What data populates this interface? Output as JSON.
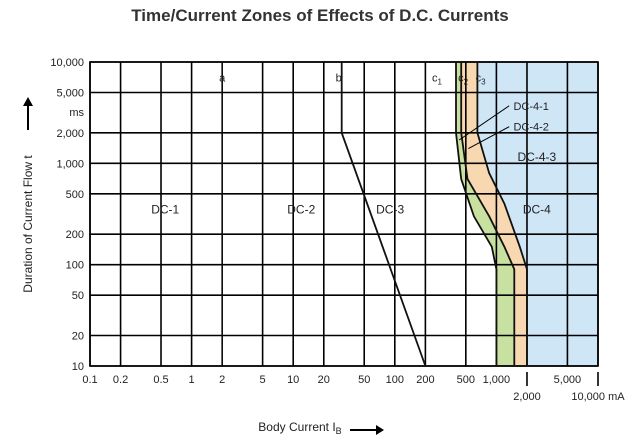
{
  "chart_data": {
    "type": "area",
    "title": "Time/Current Zones of Effects of D.C. Currents",
    "xlabel": "Body Current I",
    "xlabel_subscript": "B",
    "ylabel": "Duration of Current Flow t",
    "x_scale": "log",
    "y_scale": "log",
    "xlim": [
      0.1,
      10000
    ],
    "ylim": [
      10,
      10000
    ],
    "grid": true,
    "x_ticks": [
      {
        "value": 0.1,
        "label": "0.1",
        "row": 0
      },
      {
        "value": 0.2,
        "label": "0.2",
        "row": 0
      },
      {
        "value": 0.5,
        "label": "0.5",
        "row": 0
      },
      {
        "value": 1,
        "label": "1",
        "row": 0
      },
      {
        "value": 2,
        "label": "2",
        "row": 0
      },
      {
        "value": 5,
        "label": "5",
        "row": 0
      },
      {
        "value": 10,
        "label": "10",
        "row": 0
      },
      {
        "value": 20,
        "label": "20",
        "row": 0
      },
      {
        "value": 50,
        "label": "50",
        "row": 0
      },
      {
        "value": 100,
        "label": "100",
        "row": 0
      },
      {
        "value": 200,
        "label": "200",
        "row": 0
      },
      {
        "value": 500,
        "label": "500",
        "row": 0
      },
      {
        "value": 1000,
        "label": "1,000",
        "row": 0
      },
      {
        "value": 2000,
        "label": "2,000",
        "row": 1
      },
      {
        "value": 5000,
        "label": "5,000",
        "row": 0
      },
      {
        "value": 10000,
        "label": "10,000 mA",
        "row": 1
      }
    ],
    "y_ticks": [
      {
        "value": 10,
        "label": "10"
      },
      {
        "value": 20,
        "label": "20"
      },
      {
        "value": 50,
        "label": "50"
      },
      {
        "value": 100,
        "label": "100"
      },
      {
        "value": 200,
        "label": "200"
      },
      {
        "value": 500,
        "label": "500"
      },
      {
        "value": 1000,
        "label": "1,000"
      },
      {
        "value": 2000,
        "label": "2,000"
      },
      {
        "value": 5000,
        "label": "5,000"
      },
      {
        "value": 10000,
        "label": "10,000"
      }
    ],
    "y_unit": "ms",
    "zones": [
      {
        "label": "DC-1",
        "x": 0.55,
        "y": 350
      },
      {
        "label": "DC-2",
        "x": 12,
        "y": 350
      },
      {
        "label": "DC-3",
        "x": 90,
        "y": 350
      },
      {
        "label": "DC-4",
        "x": 2500,
        "y": 350
      },
      {
        "label": "DC-4-3",
        "x": 2500,
        "y": 1150
      }
    ],
    "curves": [
      {
        "name": "a",
        "color": "#111111",
        "points": [
          [
            2,
            10
          ],
          [
            2,
            10000
          ]
        ]
      },
      {
        "name": "b",
        "color": "#111111",
        "points": [
          [
            30,
            10000
          ],
          [
            30,
            2000
          ],
          [
            200,
            10
          ]
        ]
      },
      {
        "name": "c1",
        "color": "#111111",
        "points": [
          [
            400,
            10000
          ],
          [
            400,
            2000
          ],
          [
            450,
            700
          ],
          [
            600,
            300
          ],
          [
            900,
            150
          ],
          [
            1000,
            90
          ],
          [
            1000,
            10
          ]
        ]
      },
      {
        "name": "c2",
        "color": "#111111",
        "points": [
          [
            450,
            10000
          ],
          [
            450,
            2000
          ],
          [
            520,
            700
          ],
          [
            850,
            300
          ],
          [
            1200,
            150
          ],
          [
            1500,
            90
          ],
          [
            1500,
            10
          ]
        ]
      },
      {
        "name": "c3",
        "color": "#111111",
        "points": [
          [
            650,
            10000
          ],
          [
            650,
            2000
          ],
          [
            850,
            800
          ],
          [
            1200,
            400
          ],
          [
            1700,
            150
          ],
          [
            2000,
            90
          ],
          [
            2000,
            10
          ]
        ]
      }
    ],
    "curve_labels": [
      {
        "text": "a",
        "x": 2,
        "y": 7000
      },
      {
        "text": "b",
        "x": 28,
        "y": 7000
      },
      {
        "text": "c",
        "sub": "1",
        "x": 260,
        "y": 7000
      },
      {
        "text": "c",
        "sub": "2",
        "x": 470,
        "y": 7000
      },
      {
        "text": "c",
        "sub": "3",
        "x": 700,
        "y": 7000
      }
    ],
    "callouts": [
      {
        "label": "DC-4-1",
        "x": 2200,
        "y": 3700,
        "tx": 430,
        "ty": 1700
      },
      {
        "label": "DC-4-2",
        "x": 2200,
        "y": 2300,
        "tx": 530,
        "ty": 1400
      }
    ],
    "fills": {
      "green": "#c8e0a0",
      "orange": "#f8d8b0",
      "blue": "#cfe6f7",
      "grid": "#000000"
    }
  }
}
